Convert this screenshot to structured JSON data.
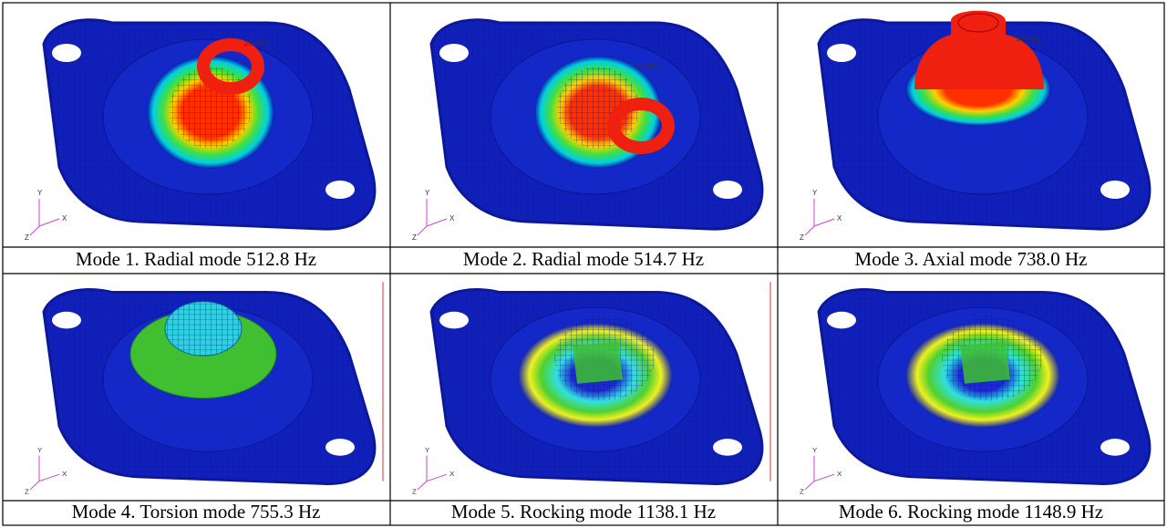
{
  "figure": {
    "panels": [
      {
        "caption": "Mode 1. Radial mode 512.8 Hz",
        "tag": "26+001"
      },
      {
        "caption": "Mode 2. Radial mode 514.7 Hz",
        "tag": "26+001"
      },
      {
        "caption": "Mode 3. Axial mode 738.0 Hz",
        "tag": "26+001"
      },
      {
        "caption": "Mode 4. Torsion mode 755.3 Hz"
      },
      {
        "caption": "Mode 5. Rocking mode 1138.1 Hz"
      },
      {
        "caption": "Mode 6. Rocking mode 1148.9 Hz"
      }
    ],
    "axes": {
      "y": "Y",
      "x": "X",
      "z": "Z"
    }
  }
}
